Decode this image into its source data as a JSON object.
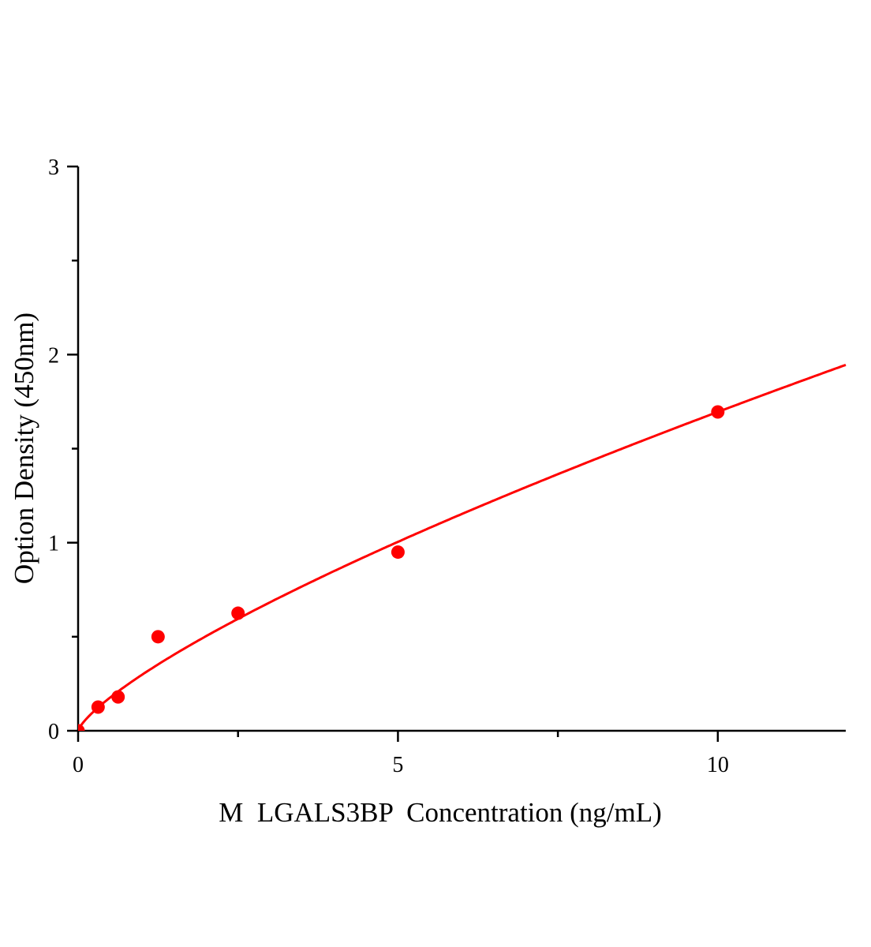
{
  "chart_data": {
    "type": "scatter",
    "title": "",
    "xlabel": "M  LGALS3BP  Concentration (ng/mL)",
    "ylabel": "Option Density (450nm)",
    "xlim": [
      0,
      12
    ],
    "ylim": [
      0,
      3
    ],
    "x_ticks": [
      0,
      5,
      10
    ],
    "x_minor_ticks": [
      2.5,
      7.5
    ],
    "y_ticks": [
      0,
      1,
      2,
      3
    ],
    "y_minor_ticks": [
      0.5,
      1.5,
      2.5
    ],
    "grid": false,
    "color": "#ff0000",
    "points": {
      "x": [
        0,
        0.3125,
        0.625,
        1.25,
        2.5,
        5,
        10
      ],
      "y": [
        0,
        0.126,
        0.18,
        0.5,
        0.625,
        0.95,
        1.695
      ]
    },
    "fit_curve": {
      "form": "power",
      "a": 0.298,
      "b": 0.755
    }
  }
}
